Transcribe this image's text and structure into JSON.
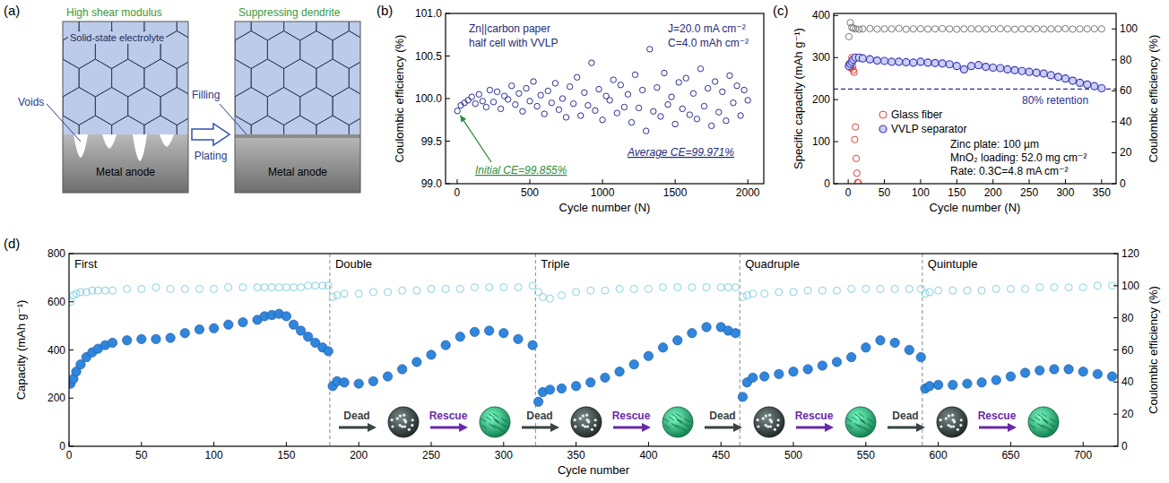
{
  "diagram": {
    "panel": "(a)",
    "left": {
      "top_label": "High shear modulus",
      "electrolyte": "Solid-state electrolyte",
      "voids": "Voids",
      "anode": "Metal anode"
    },
    "right": {
      "top_label": "Suppressing dendrite",
      "filling": "Filling",
      "anode": "Metal anode"
    },
    "process": "Plating"
  },
  "chart_data": [
    {
      "type": "scatter",
      "panel": "(b)",
      "x_label": "Cycle number (N)",
      "y_label": "Coulombic efficiency (%)",
      "xlim": [
        -80,
        2110
      ],
      "ylim": [
        99.0,
        101.0
      ],
      "xticks": [
        0,
        500,
        1000,
        1500,
        2000
      ],
      "yticks": [
        {
          "value": 99.0,
          "label": "99.0"
        },
        {
          "value": 99.5,
          "label": "99.5"
        },
        {
          "value": 100.0,
          "label": "100.0"
        },
        {
          "value": 100.5,
          "label": "100.5"
        },
        {
          "value": 101.0,
          "label": "101.0"
        }
      ],
      "annotations": [
        "Zn||carbon paper",
        "half cell with VVLP",
        "J=20.0 mA cm⁻²",
        "C=4.0 mAh cm⁻²",
        "Initial CE=99.855%",
        "Average CE=99.971%"
      ],
      "series": [
        {
          "color": "#2b2f8f",
          "marker": "open-circle",
          "x": [
            1,
            25,
            50,
            75,
            100,
            125,
            150,
            175,
            200,
            225,
            250,
            275,
            300,
            325,
            350,
            375,
            400,
            425,
            450,
            475,
            500,
            525,
            550,
            575,
            600,
            625,
            650,
            675,
            700,
            725,
            750,
            775,
            800,
            825,
            850,
            875,
            900,
            925,
            950,
            975,
            1000,
            1025,
            1050,
            1075,
            1100,
            1125,
            1150,
            1175,
            1200,
            1225,
            1250,
            1275,
            1300,
            1325,
            1350,
            1375,
            1400,
            1425,
            1450,
            1475,
            1500,
            1525,
            1550,
            1575,
            1600,
            1625,
            1650,
            1675,
            1700,
            1725,
            1750,
            1775,
            1800,
            1825,
            1850,
            1875,
            1900,
            1925,
            1950,
            1975,
            2000
          ],
          "values": [
            99.855,
            99.92,
            99.95,
            99.98,
            100.02,
            99.94,
            100.05,
            99.97,
            99.9,
            100.1,
            99.96,
            100.08,
            99.88,
            100.03,
            99.99,
            100.15,
            99.93,
            100.06,
            99.85,
            100.12,
            99.97,
            100.2,
            99.91,
            100.04,
            99.82,
            100.09,
            99.95,
            100.18,
            99.87,
            100.0,
            99.78,
            100.14,
            99.94,
            100.25,
            99.8,
            100.07,
            99.92,
            100.42,
            99.86,
            100.11,
            99.75,
            100.03,
            99.98,
            100.22,
            99.83,
            100.16,
            99.9,
            100.05,
            99.72,
            100.28,
            99.89,
            100.1,
            99.62,
            100.58,
            99.85,
            100.13,
            99.79,
            100.3,
            99.93,
            100.02,
            99.7,
            100.19,
            99.88,
            100.24,
            99.81,
            100.06,
            99.76,
            100.35,
            99.91,
            100.12,
            99.68,
            100.2,
            99.84,
            100.08,
            99.74,
            100.27,
            99.95,
            100.15,
            99.8,
            100.1,
            99.98
          ]
        }
      ]
    },
    {
      "type": "scatter",
      "panel": "(c)",
      "x_label": "Cycle number (N)",
      "y_label": "Specific capacity (mAh g⁻¹)",
      "y2_label": "Coulombic efficiency (%)",
      "xlim": [
        -20,
        370
      ],
      "ylim": [
        0,
        405
      ],
      "y2lim": [
        0,
        110
      ],
      "xticks": [
        0,
        50,
        100,
        150,
        200,
        250,
        300,
        350
      ],
      "yticks": [
        0,
        100,
        200,
        300,
        400
      ],
      "y2ticks": [
        0,
        20,
        40,
        60,
        80,
        100
      ],
      "legend": "lower-left",
      "annotations": [
        "Zinc plate: 100 µm",
        "MnO₂ loading: 52.0 mg cm⁻²",
        "Rate: 0.3C=4.8 mA cm⁻²"
      ],
      "reference_line": {
        "value": 225,
        "label": "80% retention"
      },
      "series": [
        {
          "name": "Glass fiber",
          "color": "#e0403a",
          "marker": "open-circle",
          "x": [
            1,
            2,
            3,
            4,
            5,
            6,
            7,
            8,
            9,
            10,
            11,
            12,
            13,
            14
          ],
          "values": [
            285,
            282,
            278,
            275,
            300,
            280,
            270,
            265,
            105,
            135,
            60,
            25,
            3,
            2
          ]
        },
        {
          "name": "VVLP separator",
          "color": "#3b3bb8",
          "marker": "circle",
          "x": [
            1,
            3,
            5,
            7,
            10,
            15,
            20,
            30,
            40,
            50,
            60,
            70,
            80,
            90,
            100,
            110,
            120,
            130,
            140,
            150,
            160,
            170,
            180,
            190,
            200,
            210,
            220,
            230,
            240,
            250,
            260,
            270,
            280,
            290,
            300,
            310,
            320,
            330,
            340,
            350
          ],
          "values": [
            280,
            285,
            290,
            295,
            300,
            300,
            298,
            296,
            293,
            292,
            290,
            290,
            289,
            288,
            290,
            288,
            287,
            286,
            284,
            280,
            272,
            280,
            282,
            278,
            276,
            275,
            272,
            270,
            268,
            266,
            264,
            262,
            258,
            254,
            250,
            245,
            240,
            236,
            232,
            227
          ]
        },
        {
          "color": "#7a7a7a",
          "marker": "open-circle",
          "axis": "y2",
          "x": [
            1,
            3,
            5,
            7,
            10,
            15,
            20,
            30,
            40,
            50,
            60,
            70,
            80,
            90,
            100,
            110,
            120,
            130,
            140,
            150,
            160,
            170,
            180,
            190,
            200,
            210,
            220,
            230,
            240,
            250,
            260,
            270,
            280,
            290,
            300,
            310,
            320,
            330,
            340,
            350
          ],
          "values": [
            95,
            104,
            101,
            100.5,
            100,
            99.8,
            100,
            100.2,
            99.9,
            100,
            100,
            100.3,
            99.8,
            100,
            100.1,
            99.9,
            100,
            100.2,
            100,
            99.8,
            100,
            100.1,
            100,
            99.9,
            100,
            100.2,
            100,
            99.8,
            100,
            100,
            100.1,
            99.9,
            100,
            100,
            100.2,
            99.9,
            100,
            100,
            100.1,
            100
          ]
        }
      ]
    },
    {
      "type": "scatter",
      "panel": "(d)",
      "x_label": "Cycle number",
      "y_label": "Capacity (mAh g⁻¹)",
      "y2_label": "Coulombic efficiency (%)",
      "xlim": [
        0,
        724
      ],
      "ylim": [
        0,
        800
      ],
      "y2lim": [
        0,
        120
      ],
      "xticks": [
        0,
        50,
        100,
        150,
        200,
        250,
        300,
        350,
        400,
        450,
        500,
        550,
        600,
        650,
        700
      ],
      "yticks": [
        0,
        200,
        400,
        600,
        800
      ],
      "y2ticks": [
        0,
        20,
        40,
        60,
        80,
        100,
        120
      ],
      "sections": [
        {
          "label": "First",
          "start": 0
        },
        {
          "label": "Double",
          "start": 180
        },
        {
          "label": "Triple",
          "start": 322
        },
        {
          "label": "Quadruple",
          "start": 463
        },
        {
          "label": "Quintuple",
          "start": 589
        }
      ],
      "stages": [
        "Dead",
        "Rescue",
        "Dead",
        "Rescue",
        "Dead",
        "Rescue",
        "Dead",
        "Rescue"
      ],
      "series": [
        {
          "color": "#86d2e2",
          "marker": "open-circle",
          "axis": "y2",
          "x": [
            1,
            3,
            5,
            8,
            12,
            16,
            20,
            25,
            30,
            40,
            50,
            60,
            70,
            80,
            90,
            100,
            110,
            120,
            130,
            135,
            140,
            145,
            150,
            155,
            160,
            165,
            170,
            175,
            179,
            182,
            185,
            190,
            200,
            210,
            220,
            230,
            240,
            250,
            260,
            270,
            280,
            290,
            300,
            310,
            320,
            324,
            327,
            332,
            340,
            350,
            360,
            370,
            380,
            390,
            400,
            410,
            420,
            430,
            440,
            450,
            455,
            460,
            465,
            468,
            472,
            480,
            490,
            500,
            510,
            520,
            530,
            540,
            550,
            560,
            570,
            580,
            588,
            591,
            594,
            600,
            610,
            620,
            630,
            640,
            650,
            660,
            670,
            680,
            690,
            700,
            710,
            720
          ],
          "values": [
            90,
            94,
            95,
            96,
            96,
            97,
            97,
            97,
            97,
            98,
            98,
            99,
            98,
            98,
            98,
            98,
            99,
            99,
            99,
            99,
            99,
            99,
            99,
            99,
            99,
            100,
            100,
            100,
            100,
            93,
            94,
            95,
            95,
            96,
            96,
            97,
            97,
            98,
            98,
            98,
            99,
            99,
            99,
            99,
            100,
            96,
            93,
            92,
            94,
            96,
            97,
            97,
            98,
            98,
            98,
            99,
            99,
            99,
            99,
            99,
            99,
            99,
            93,
            94,
            95,
            95,
            96,
            96,
            97,
            97,
            97,
            98,
            98,
            98,
            98,
            98,
            98,
            95,
            96,
            97,
            97,
            97,
            97,
            98,
            98,
            98,
            99,
            99,
            99,
            99,
            100,
            100
          ]
        },
        {
          "color": "#2f86dc",
          "marker": "filled-circle",
          "x": [
            1,
            3,
            5,
            8,
            12,
            16,
            20,
            25,
            30,
            40,
            50,
            60,
            70,
            80,
            90,
            100,
            110,
            120,
            130,
            135,
            140,
            145,
            150,
            155,
            160,
            165,
            170,
            175,
            179,
            182,
            185,
            190,
            200,
            210,
            220,
            230,
            240,
            250,
            260,
            270,
            280,
            290,
            300,
            310,
            320,
            324,
            327,
            332,
            340,
            350,
            360,
            370,
            380,
            390,
            400,
            410,
            420,
            430,
            440,
            450,
            455,
            460,
            465,
            468,
            472,
            480,
            490,
            500,
            510,
            520,
            530,
            540,
            550,
            560,
            570,
            580,
            588,
            591,
            594,
            600,
            610,
            620,
            630,
            640,
            650,
            660,
            670,
            680,
            690,
            700,
            710,
            720
          ],
          "values": [
            260,
            280,
            310,
            340,
            370,
            390,
            405,
            420,
            430,
            440,
            445,
            445,
            450,
            470,
            485,
            490,
            505,
            515,
            525,
            540,
            545,
            550,
            540,
            505,
            480,
            455,
            430,
            410,
            395,
            250,
            270,
            265,
            260,
            270,
            290,
            320,
            350,
            380,
            420,
            455,
            475,
            480,
            470,
            445,
            420,
            185,
            225,
            235,
            240,
            250,
            265,
            285,
            310,
            340,
            375,
            410,
            440,
            470,
            495,
            495,
            480,
            470,
            205,
            265,
            285,
            290,
            300,
            310,
            320,
            335,
            350,
            370,
            410,
            440,
            430,
            400,
            370,
            240,
            250,
            255,
            255,
            260,
            265,
            275,
            290,
            305,
            315,
            320,
            320,
            310,
            300,
            290
          ]
        }
      ]
    }
  ]
}
